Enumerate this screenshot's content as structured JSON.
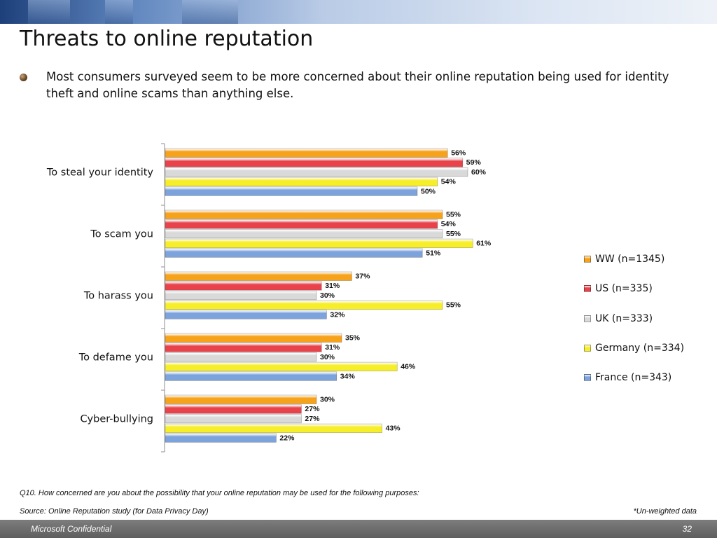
{
  "slide": {
    "title": "Threats to online reputation",
    "bullet": "Most consumers surveyed seem to be more concerned about their online reputation being used for identity theft and online scams than anything else.",
    "footnote_question": "Q10. How concerned are you about the possibility that your online reputation may be used for the following purposes:",
    "footnote_source": "Source: Online Reputation study (for Data Privacy Day)",
    "footnote_unweighted": "*Un-weighted data",
    "footer_left": "Microsoft Confidential",
    "page_number": "32"
  },
  "chart_data": {
    "type": "bar",
    "orientation": "horizontal",
    "title": "",
    "xlabel": "",
    "ylabel": "",
    "xlim": [
      0,
      100
    ],
    "grid": false,
    "legend_position": "right",
    "value_suffix": "%",
    "categories": [
      "To steal your identity",
      "To scam you",
      "To harass you",
      "To defame you",
      "Cyber-bullying"
    ],
    "series": [
      {
        "name": "WW (n=1345)",
        "color": "#f7a21b",
        "values": [
          56,
          55,
          37,
          35,
          30
        ]
      },
      {
        "name": "US (n=335)",
        "color": "#e8434b",
        "values": [
          59,
          54,
          31,
          31,
          27
        ]
      },
      {
        "name": "UK (n=333)",
        "color": "#d9d9d9",
        "values": [
          60,
          55,
          30,
          30,
          27
        ]
      },
      {
        "name": "Germany (n=334)",
        "color": "#f7ee2a",
        "values": [
          54,
          61,
          55,
          46,
          43
        ]
      },
      {
        "name": "France (n=343)",
        "color": "#7da3dc",
        "values": [
          50,
          51,
          32,
          34,
          22
        ]
      }
    ]
  }
}
